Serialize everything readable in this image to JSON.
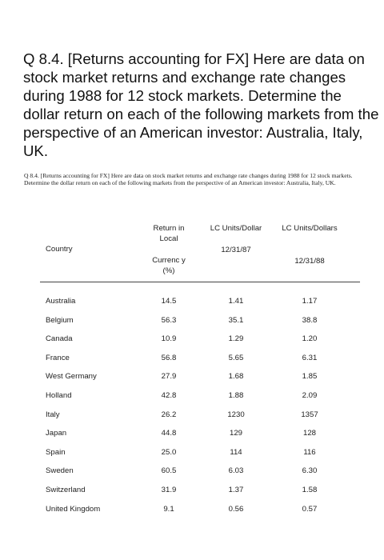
{
  "question": {
    "large_text": "Q 8.4. [Returns accounting for FX] Here are data on stock market returns and exchange rate changes during 1988 for 12 stock markets. Determine the dollar return on each of the following markets from the perspective of an American investor: Australia, Italy, UK.",
    "small_text": "Q 8.4. [Returns accounting for FX] Here are data on stock market returns and exchange rate changes during 1988 for 12 stock markets. Determine the dollar return on each of the following markets from the perspective of an American investor: Australia, Italy, UK."
  },
  "table": {
    "headers": {
      "country": "Country",
      "return_top": "Return in Local",
      "return_bottom": "Currenc y (%)",
      "lc_1987_top": "LC Units/Dollar",
      "lc_1987_bottom": "12/31/87",
      "lc_1988_top": "LC Units/Dollars",
      "lc_1988_bottom": "12/31/88"
    },
    "rows": [
      {
        "country": "Australia",
        "return": "14.5",
        "lc_1987": "1.41",
        "lc_1988": "1.17"
      },
      {
        "country": "Belgium",
        "return": "56.3",
        "lc_1987": "35.1",
        "lc_1988": "38.8"
      },
      {
        "country": "Canada",
        "return": "10.9",
        "lc_1987": "1.29",
        "lc_1988": "1.20"
      },
      {
        "country": "France",
        "return": "56.8",
        "lc_1987": "5.65",
        "lc_1988": "6.31"
      },
      {
        "country": "West Germany",
        "return": "27.9",
        "lc_1987": "1.68",
        "lc_1988": "1.85"
      },
      {
        "country": "Holland",
        "return": "42.8",
        "lc_1987": "1.88",
        "lc_1988": "2.09"
      },
      {
        "country": "Italy",
        "return": "26.2",
        "lc_1987": "1230",
        "lc_1988": "1357"
      },
      {
        "country": "Japan",
        "return": "44.8",
        "lc_1987": "129",
        "lc_1988": "128"
      },
      {
        "country": "Spain",
        "return": "25.0",
        "lc_1987": "114",
        "lc_1988": "116"
      },
      {
        "country": "Sweden",
        "return": "60.5",
        "lc_1987": "6.03",
        "lc_1988": "6.30"
      },
      {
        "country": "Switzerland",
        "return": "31.9",
        "lc_1987": "1.37",
        "lc_1988": "1.58"
      },
      {
        "country": "United Kingdom",
        "return": "9.1",
        "lc_1987": "0.56",
        "lc_1988": "0.57"
      }
    ]
  }
}
